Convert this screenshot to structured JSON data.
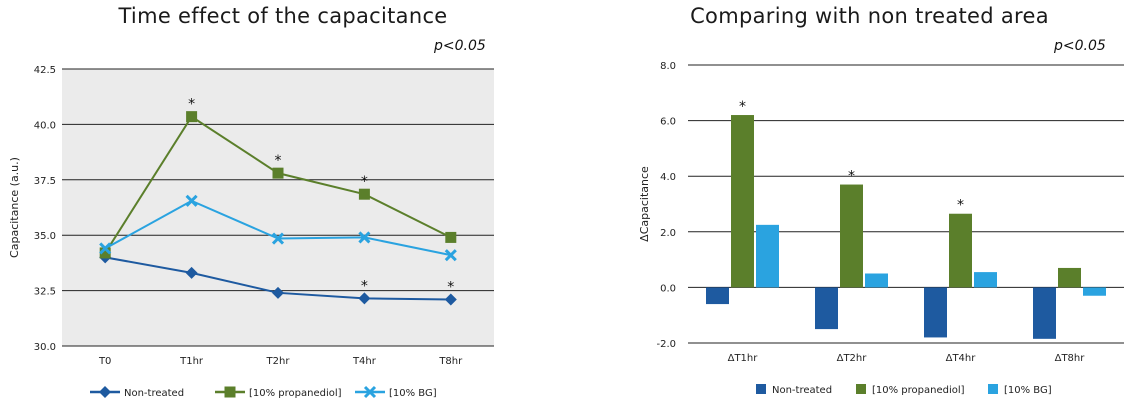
{
  "chart_data": [
    {
      "type": "line",
      "title": "Time effect of the capacitance",
      "annotation": "p<0.05",
      "ylabel": "Capacitance (a.u.)",
      "xlabel": "",
      "categories": [
        "T0",
        "T1hr",
        "T2hr",
        "T4hr",
        "T8hr"
      ],
      "ylim": [
        30.0,
        42.5
      ],
      "yticks": [
        "30.0",
        "32.5",
        "35.0",
        "37.5",
        "40.0",
        "42.5"
      ],
      "grid": true,
      "legend_position": "bottom",
      "series": [
        {
          "name": "Non-treated",
          "values": [
            34.0,
            33.3,
            32.4,
            32.15,
            32.1
          ],
          "color": "#1e5aa0",
          "marker": "diamond",
          "significant": [
            false,
            false,
            false,
            true,
            true
          ]
        },
        {
          "name": "[10% propanediol]",
          "values": [
            34.2,
            40.35,
            37.8,
            36.85,
            34.9
          ],
          "color": "#5b7f2b",
          "marker": "square",
          "significant": [
            false,
            true,
            true,
            true,
            false
          ]
        },
        {
          "name": "[10% BG]",
          "values": [
            34.4,
            36.55,
            34.85,
            34.9,
            34.1
          ],
          "color": "#2aa3e0",
          "marker": "x",
          "significant": [
            false,
            false,
            false,
            false,
            false
          ]
        }
      ]
    },
    {
      "type": "bar",
      "title": "Comparing with non treated area",
      "annotation": "p<0.05",
      "ylabel": "ΔCapacitance",
      "xlabel": "",
      "categories": [
        "ΔT1hr",
        "ΔT2hr",
        "ΔT4hr",
        "ΔT8hr"
      ],
      "ylim": [
        -2.0,
        8.0
      ],
      "yticks": [
        "-2.0",
        "0.0",
        "2.0",
        "4.0",
        "6.0",
        "8.0"
      ],
      "grid": true,
      "legend_position": "bottom",
      "series": [
        {
          "name": "Non-treated",
          "values": [
            -0.6,
            -1.5,
            -1.8,
            -1.85
          ],
          "color": "#1e5aa0",
          "significant": [
            false,
            false,
            false,
            false
          ]
        },
        {
          "name": "[10% propanediol]",
          "values": [
            6.2,
            3.7,
            2.65,
            0.7
          ],
          "color": "#5b7f2b",
          "significant": [
            true,
            true,
            true,
            false
          ]
        },
        {
          "name": "[10% BG]",
          "values": [
            2.25,
            0.5,
            0.55,
            -0.3
          ],
          "color": "#2aa3e0",
          "significant": [
            false,
            false,
            false,
            false
          ]
        }
      ]
    }
  ]
}
